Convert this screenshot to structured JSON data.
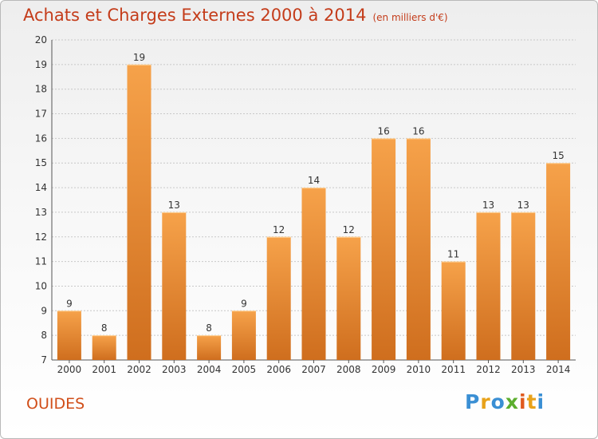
{
  "title": {
    "main": "Achats et Charges Externes 2000 à 2014",
    "unit": "(en milliers d'€)"
  },
  "commune": "OUIDES",
  "logo": {
    "letters": [
      "P",
      "r",
      "o",
      "x",
      "i",
      "t",
      "i"
    ],
    "colors": [
      "#3a8fd4",
      "#e8a21a",
      "#3a8fd4",
      "#5cae2e",
      "#e05a1e",
      "#e8a21a",
      "#3a8fd4"
    ]
  },
  "chart_data": {
    "type": "bar",
    "categories": [
      "2000",
      "2001",
      "2002",
      "2003",
      "2004",
      "2005",
      "2006",
      "2007",
      "2008",
      "2009",
      "2010",
      "2011",
      "2012",
      "2013",
      "2014"
    ],
    "values": [
      9,
      8,
      19,
      13,
      8,
      9,
      12,
      14,
      12,
      16,
      16,
      11,
      13,
      13,
      15
    ],
    "ylim": [
      7,
      20
    ],
    "yticks": [
      7,
      8,
      9,
      10,
      11,
      12,
      13,
      14,
      15,
      16,
      17,
      18,
      19,
      20
    ],
    "grid": true,
    "colors": {
      "bar_top": "#f6a24a",
      "bar_bottom": "#cf6e1e",
      "grid": "#c8c8c8",
      "axis": "#555555",
      "text": "#333333"
    }
  }
}
